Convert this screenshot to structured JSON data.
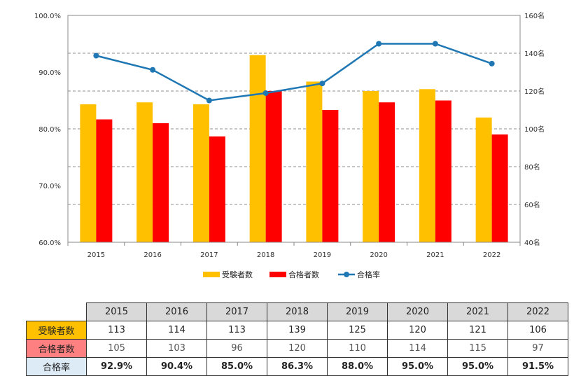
{
  "chart_data": {
    "type": "bar",
    "categories": [
      "2015",
      "2016",
      "2017",
      "2018",
      "2019",
      "2020",
      "2021",
      "2022"
    ],
    "series": [
      {
        "name": "受験者数",
        "kind": "bar",
        "axis": "right",
        "color": "#FFC000",
        "values": [
          113,
          114,
          113,
          139,
          125,
          120,
          121,
          106
        ]
      },
      {
        "name": "合格者数",
        "kind": "bar",
        "axis": "right",
        "color": "#FF0000",
        "values": [
          105,
          103,
          96,
          120,
          110,
          114,
          115,
          97
        ]
      },
      {
        "name": "合格率",
        "kind": "line",
        "axis": "left",
        "color": "#1F77B4",
        "values": [
          92.9,
          90.4,
          85.0,
          86.3,
          88.0,
          95.0,
          95.0,
          91.5
        ]
      }
    ],
    "left_axis": {
      "min": 60,
      "max": 100,
      "ticks": [
        "60.0%",
        "70.0%",
        "80.0%",
        "90.0%",
        "100.0%"
      ]
    },
    "right_axis": {
      "min": 40,
      "max": 160,
      "ticks": [
        "40名",
        "60名",
        "80名",
        "100名",
        "120名",
        "140名",
        "160名"
      ]
    },
    "grid": true,
    "legend_position": "bottom"
  },
  "table": {
    "columns": [
      "2015",
      "2016",
      "2017",
      "2018",
      "2019",
      "2020",
      "2021",
      "2022"
    ],
    "rows": [
      {
        "label": "受験者数",
        "color": "#FFC000",
        "cells": [
          "113",
          "114",
          "113",
          "139",
          "125",
          "120",
          "121",
          "106"
        ]
      },
      {
        "label": "合格者数",
        "color": "#FF8080",
        "cells": [
          "105",
          "103",
          "96",
          "120",
          "110",
          "114",
          "115",
          "97"
        ]
      },
      {
        "label": "合格率",
        "color": "#DDEBF7",
        "cells": [
          "92.9%",
          "90.4%",
          "85.0%",
          "86.3%",
          "88.0%",
          "95.0%",
          "95.0%",
          "91.5%"
        ]
      }
    ]
  }
}
